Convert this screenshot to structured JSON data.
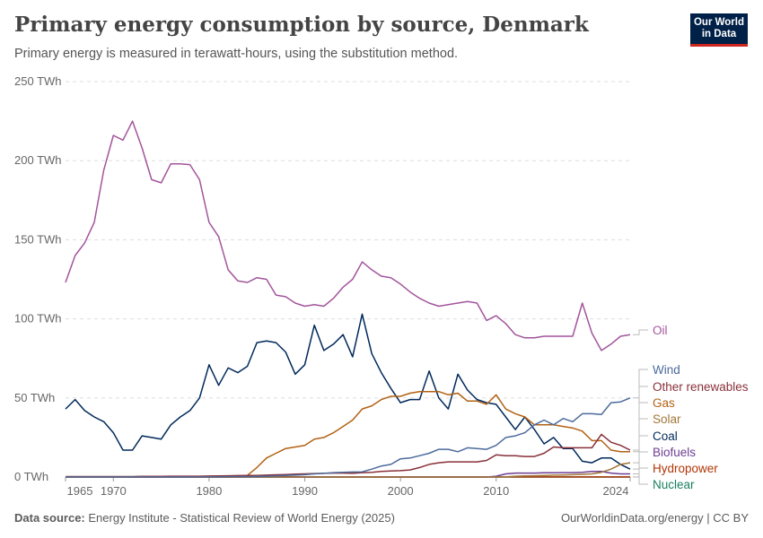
{
  "header": {
    "title": "Primary energy consumption by source, Denmark",
    "subtitle": "Primary energy is measured in terawatt-hours, using the substitution method.",
    "logo": "Our World in Data"
  },
  "footer": {
    "source_label": "Data source:",
    "source": "Energy Institute - Statistical Review of World Energy (2025)",
    "credit": "OurWorldinData.org/energy | CC BY"
  },
  "chart_data": {
    "type": "line",
    "title": "Primary energy consumption by source, Denmark",
    "xlim": [
      1965,
      2024
    ],
    "ylim": [
      0,
      250
    ],
    "y_ticks": [
      0,
      50,
      100,
      150,
      200,
      250
    ],
    "y_tick_labels": [
      "0 TWh",
      "50 TWh",
      "100 TWh",
      "150 TWh",
      "200 TWh",
      "250 TWh"
    ],
    "x_ticks": [
      1965,
      1970,
      1980,
      1990,
      2000,
      2010,
      2024
    ],
    "x_tick_labels": [
      "1965",
      "1970",
      "1980",
      "1990",
      "2000",
      "2010",
      "2024"
    ],
    "grid": "horizontal dashed",
    "legend": "right, line-end labels",
    "x_start": 1965,
    "series": [
      {
        "name": "Oil",
        "color": "#a2559c",
        "values": [
          123,
          140,
          148,
          161,
          194,
          216,
          213,
          225,
          208,
          188,
          186,
          198,
          198,
          197.5,
          188,
          161,
          152,
          131,
          124,
          123,
          126,
          125,
          115,
          114,
          110,
          108,
          109,
          108,
          113,
          120,
          125,
          136,
          131,
          127,
          126,
          122,
          117,
          113,
          110,
          108,
          109,
          110,
          111,
          110,
          99,
          102,
          97,
          90,
          88,
          88,
          89,
          89,
          89,
          89,
          110,
          91,
          80,
          84,
          89,
          90
        ]
      },
      {
        "name": "Wind",
        "color": "#4c6a9c",
        "values": [
          0,
          0,
          0,
          0,
          0,
          0,
          0,
          0,
          0,
          0,
          0,
          0,
          0,
          0,
          0,
          0.1,
          0.1,
          0.2,
          0.2,
          0.3,
          0.3,
          0.5,
          0.8,
          1,
          1.2,
          1.5,
          2,
          2.3,
          2.8,
          3,
          3.2,
          3.3,
          5,
          7,
          8,
          11.5,
          12,
          13.5,
          15,
          17.5,
          17.5,
          16,
          18.5,
          18,
          17.5,
          20,
          25,
          26,
          28,
          33,
          36,
          33,
          37,
          35,
          40,
          40,
          39.5,
          47,
          47.5,
          50
        ]
      },
      {
        "name": "Other renewables",
        "color": "#883039",
        "values": [
          0.3,
          0.3,
          0.3,
          0.3,
          0.3,
          0.3,
          0.3,
          0.3,
          0.4,
          0.4,
          0.4,
          0.5,
          0.5,
          0.5,
          0.5,
          0.6,
          0.7,
          0.8,
          0.9,
          1,
          1,
          1.2,
          1.4,
          1.6,
          1.8,
          2,
          2.2,
          2.3,
          2.5,
          2.5,
          2.3,
          2.8,
          3,
          3.5,
          3.8,
          4,
          4.5,
          6,
          8,
          9,
          9.6,
          9.6,
          9.6,
          9.6,
          10.5,
          14,
          13.5,
          13.5,
          13,
          13,
          15,
          19,
          18.5,
          18.5,
          18.5,
          18.5,
          27,
          22,
          20,
          17
        ]
      },
      {
        "name": "Gas",
        "color": "#b16214",
        "values": [
          0,
          0,
          0,
          0,
          0,
          0,
          0,
          0,
          0,
          0,
          0,
          0,
          0,
          0,
          0,
          0,
          0,
          0,
          0,
          1,
          6,
          12,
          15,
          18,
          19,
          20,
          24,
          25,
          28,
          32,
          36,
          43,
          45,
          49,
          51,
          51,
          53,
          54,
          54,
          54,
          52,
          53,
          48,
          48,
          46,
          52,
          43,
          40,
          38,
          33,
          33,
          33,
          32,
          31,
          29,
          23,
          23,
          17,
          16,
          16
        ]
      },
      {
        "name": "Solar",
        "color": "#a2763a",
        "values": [
          0,
          0,
          0,
          0,
          0,
          0,
          0,
          0,
          0,
          0,
          0,
          0,
          0,
          0,
          0,
          0,
          0,
          0,
          0,
          0,
          0,
          0,
          0,
          0,
          0,
          0,
          0,
          0,
          0,
          0,
          0,
          0,
          0,
          0,
          0,
          0,
          0,
          0,
          0,
          0,
          0,
          0,
          0,
          0,
          0,
          0,
          0.1,
          0.5,
          0.7,
          0.8,
          1,
          1.2,
          1.3,
          1.5,
          1.7,
          2,
          3,
          5,
          8,
          9
        ]
      },
      {
        "name": "Coal",
        "color": "#00295b",
        "values": [
          43,
          49,
          42,
          38,
          35,
          28,
          17,
          17,
          26,
          25,
          24,
          33,
          38,
          42,
          50,
          71,
          58,
          69,
          66,
          70,
          85,
          86,
          85,
          79,
          65,
          71,
          96,
          80,
          84,
          90,
          76,
          103,
          78,
          66,
          56,
          47,
          49,
          49,
          67,
          50,
          43,
          65,
          55,
          49,
          47,
          46,
          38,
          30,
          38,
          30,
          21,
          25,
          18,
          18,
          10,
          9,
          12,
          12,
          8,
          5
        ]
      },
      {
        "name": "Biofuels",
        "color": "#6d3e91",
        "values": [
          0,
          0,
          0,
          0,
          0,
          0,
          0,
          0,
          0,
          0,
          0,
          0,
          0,
          0,
          0,
          0,
          0,
          0,
          0,
          0,
          0,
          0,
          0,
          0,
          0,
          0,
          0,
          0,
          0,
          0,
          0,
          0,
          0,
          0,
          0,
          0,
          0,
          0,
          0,
          0,
          0,
          0,
          0,
          0,
          0,
          0.5,
          2,
          2.5,
          2.5,
          2.5,
          2.7,
          2.7,
          2.8,
          2.8,
          3,
          3.5,
          3.5,
          2.5,
          2,
          2
        ]
      },
      {
        "name": "Hydropower",
        "color": "#b13507",
        "values": [
          0.05,
          0.05,
          0.05,
          0.05,
          0.05,
          0.05,
          0.05,
          0.05,
          0.05,
          0.05,
          0.05,
          0.05,
          0.05,
          0.05,
          0.05,
          0.05,
          0.05,
          0.05,
          0.05,
          0.05,
          0.05,
          0.05,
          0.05,
          0.05,
          0.05,
          0.05,
          0.05,
          0.05,
          0.05,
          0.05,
          0.05,
          0.05,
          0.05,
          0.05,
          0.05,
          0.05,
          0.05,
          0.05,
          0.05,
          0.05,
          0.05,
          0.05,
          0.05,
          0.05,
          0.05,
          0.05,
          0.05,
          0.05,
          0.05,
          0.05,
          0.05,
          0.05,
          0.05,
          0.05,
          0.05,
          0.05,
          0.05,
          0.05,
          0.05,
          0.05
        ]
      },
      {
        "name": "Nuclear",
        "color": "#18805f",
        "values": [
          0,
          0,
          0,
          0,
          0,
          0,
          0,
          0,
          0,
          0,
          0,
          0,
          0,
          0,
          0,
          0,
          0,
          0,
          0,
          0,
          0,
          0,
          0,
          0,
          0,
          0,
          0,
          0,
          0,
          0,
          0,
          0,
          0,
          0,
          0,
          0,
          0,
          0,
          0,
          0,
          0,
          0,
          0,
          0,
          0,
          0,
          0,
          0,
          0,
          0,
          0,
          0,
          0,
          0,
          0,
          0,
          0,
          0,
          0,
          0
        ]
      }
    ]
  }
}
